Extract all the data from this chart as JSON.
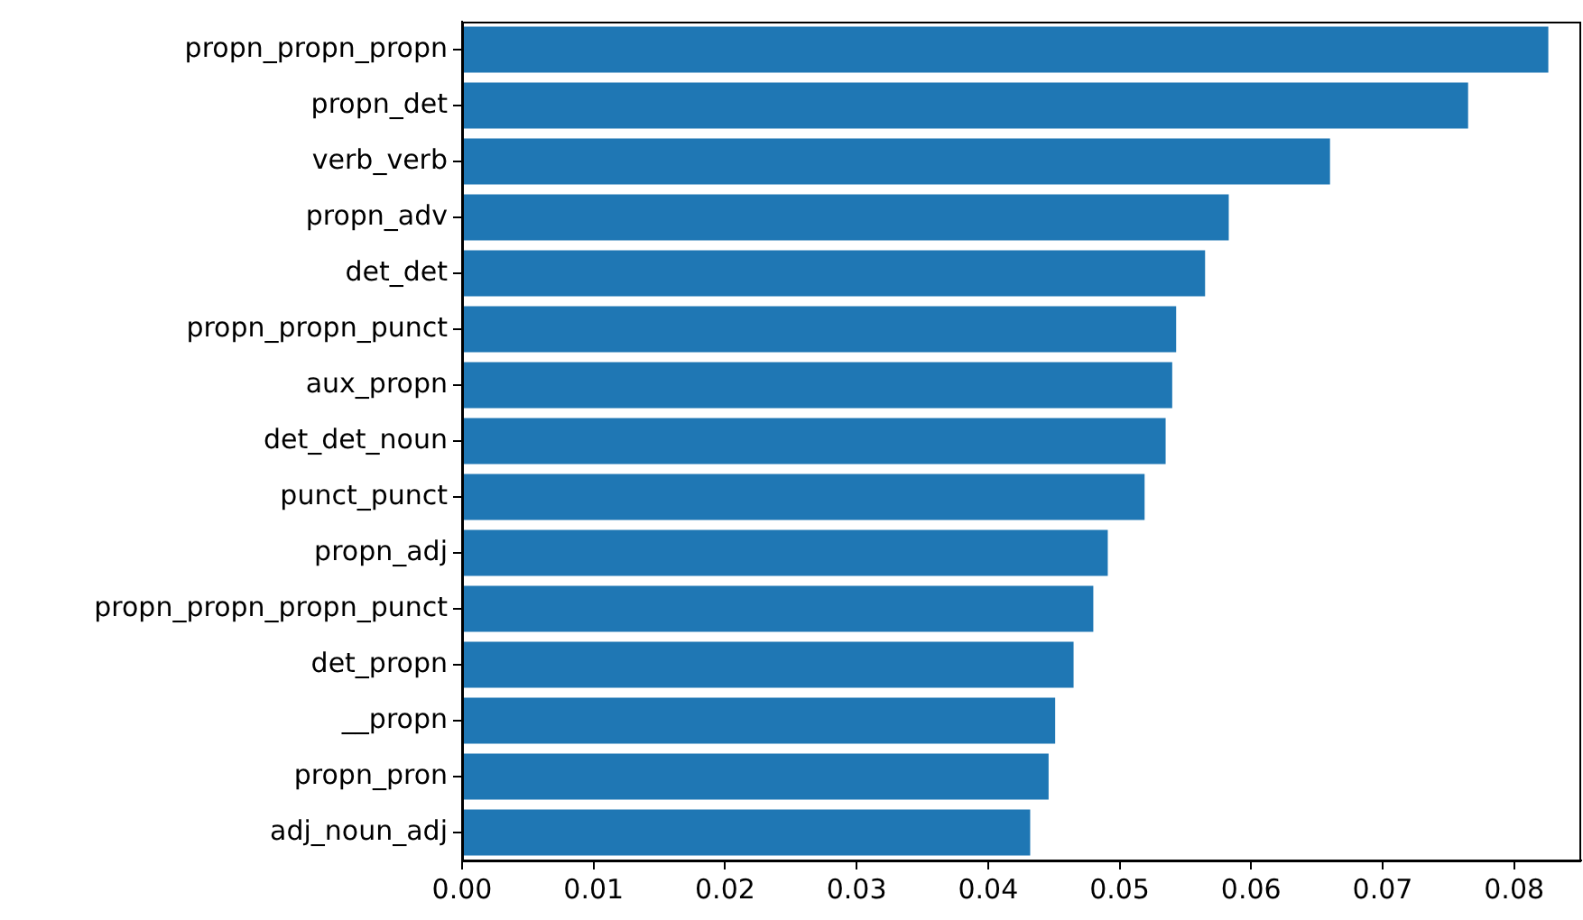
{
  "chart_data": {
    "type": "bar",
    "orientation": "horizontal",
    "color": "#1f77b4",
    "categories": [
      "propn_propn_propn",
      "propn_det",
      "verb_verb",
      "propn_adv",
      "det_det",
      "propn_propn_punct",
      "aux_propn",
      "det_det_noun",
      "punct_punct",
      "propn_adj",
      "propn_propn_propn_punct",
      "det_propn",
      "__propn",
      "propn_pron",
      "adj_noun_adj"
    ],
    "values": [
      0.0826,
      0.0765,
      0.066,
      0.0583,
      0.0565,
      0.0543,
      0.054,
      0.0535,
      0.0519,
      0.0491,
      0.048,
      0.0465,
      0.0451,
      0.0446,
      0.0432
    ],
    "xlim": [
      0,
      0.0851
    ],
    "xticks": [
      {
        "value": 0,
        "label": "0.00"
      },
      {
        "value": 0.01,
        "label": "0.01"
      },
      {
        "value": 0.02,
        "label": "0.02"
      },
      {
        "value": 0.03,
        "label": "0.03"
      },
      {
        "value": 0.04,
        "label": "0.04"
      },
      {
        "value": 0.05,
        "label": "0.05"
      },
      {
        "value": 0.06,
        "label": "0.06"
      },
      {
        "value": 0.07,
        "label": "0.07"
      },
      {
        "value": 0.08,
        "label": "0.08"
      }
    ],
    "grid": false,
    "legend": false
  }
}
